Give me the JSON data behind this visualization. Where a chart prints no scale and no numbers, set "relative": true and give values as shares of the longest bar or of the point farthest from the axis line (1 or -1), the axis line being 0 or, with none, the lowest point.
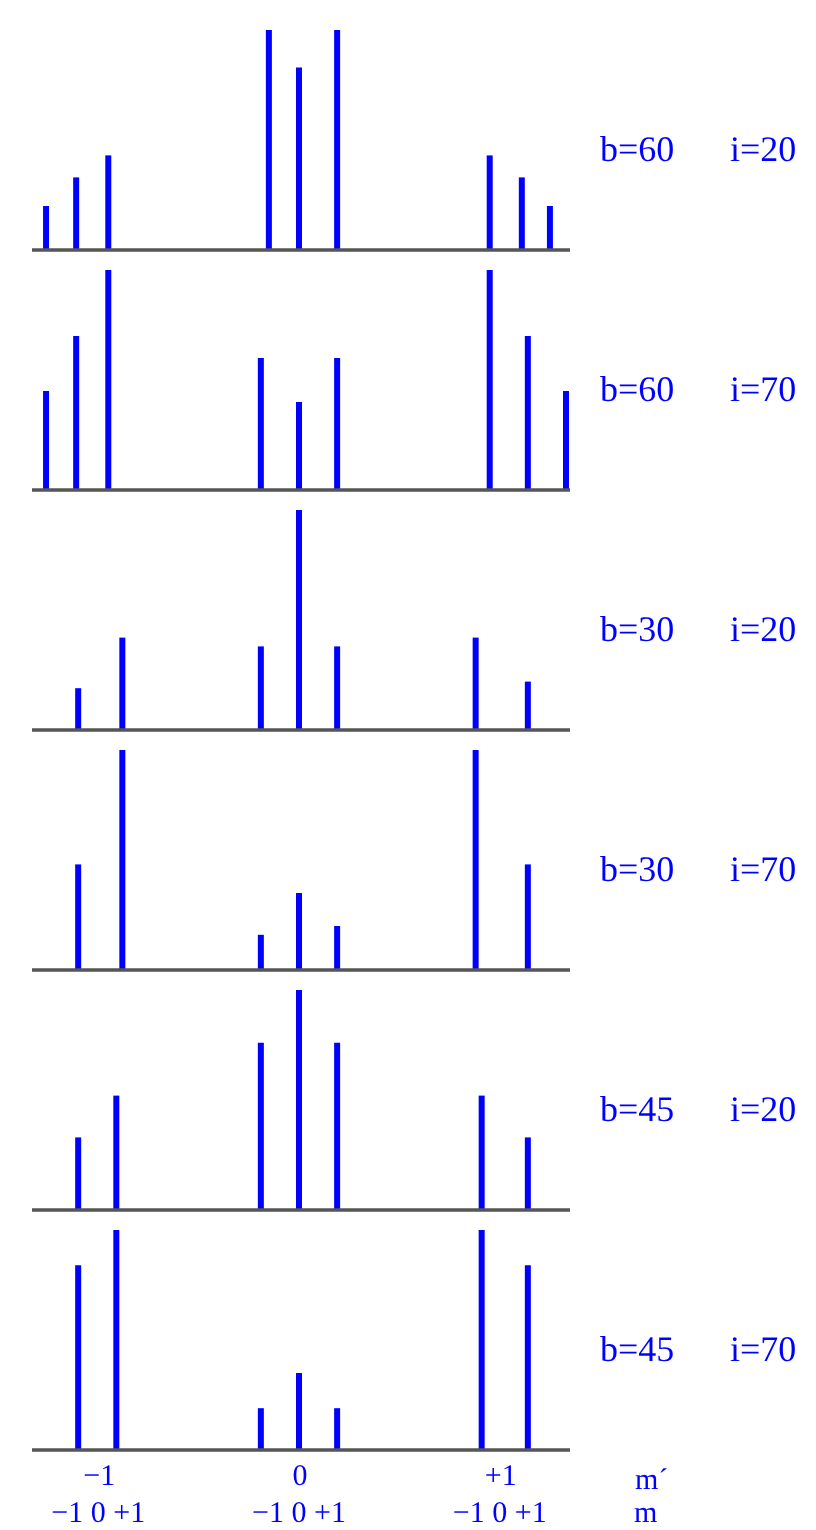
{
  "chart_data": [
    {
      "type": "bar",
      "x": [
        -1.26,
        -1.11,
        -0.95,
        -0.15,
        0,
        0.19,
        0.95,
        1.11,
        1.25
      ],
      "values": [
        0.2,
        0.33,
        0.43,
        1,
        0.83,
        1,
        0.43,
        0.33,
        0.2
      ],
      "color": "#0000ff",
      "relative": true,
      "xlim": [
        -1.33,
        1.35
      ],
      "tick_labels": false,
      "annotations": [
        "b=60",
        "i=20"
      ]
    },
    {
      "type": "bar",
      "x": [
        -1.26,
        -1.11,
        -0.95,
        -0.19,
        0,
        0.19,
        0.95,
        1.14,
        1.33
      ],
      "values": [
        0.45,
        0.7,
        1,
        0.6,
        0.4,
        0.6,
        1,
        0.7,
        0.45
      ],
      "color": "#0000ff",
      "relative": true,
      "xlim": [
        -1.33,
        1.35
      ],
      "tick_labels": false,
      "annotations": [
        "b=60",
        "i=70"
      ]
    },
    {
      "type": "bar",
      "x": [
        -1.1,
        -0.88,
        -0.19,
        0,
        0.19,
        0.88,
        1.14
      ],
      "values": [
        0.19,
        0.42,
        0.38,
        1,
        0.38,
        0.42,
        0.22
      ],
      "color": "#0000ff",
      "relative": true,
      "xlim": [
        -1.33,
        1.35
      ],
      "tick_labels": false,
      "annotations": [
        "b=30",
        "i=20"
      ]
    },
    {
      "type": "bar",
      "x": [
        -1.1,
        -0.88,
        -0.19,
        0,
        0.19,
        0.88,
        1.14
      ],
      "values": [
        0.48,
        1,
        0.16,
        0.35,
        0.2,
        1,
        0.48
      ],
      "color": "#0000ff",
      "relative": true,
      "xlim": [
        -1.33,
        1.35
      ],
      "tick_labels": false,
      "annotations": [
        "b=30",
        "i=70"
      ]
    },
    {
      "type": "bar",
      "x": [
        -1.1,
        -0.91,
        -0.19,
        0,
        0.19,
        0.91,
        1.14
      ],
      "values": [
        0.33,
        0.52,
        0.76,
        1,
        0.76,
        0.52,
        0.33
      ],
      "color": "#0000ff",
      "relative": true,
      "xlim": [
        -1.33,
        1.35
      ],
      "tick_labels": false,
      "annotations": [
        "b=45",
        "i=20"
      ]
    },
    {
      "type": "bar",
      "x": [
        -1.1,
        -0.91,
        -0.19,
        0,
        0.19,
        0.91,
        1.14
      ],
      "values": [
        0.84,
        1,
        0.19,
        0.35,
        0.19,
        1,
        0.84
      ],
      "color": "#0000ff",
      "relative": true,
      "xlim": [
        -1.33,
        1.35
      ],
      "xticks": [
        {
          "value": -1,
          "label": "−1"
        },
        0,
        {
          "value": 1,
          "label": "+1"
        }
      ],
      "xlabel": "m´",
      "annotations": [
        "b=45",
        "i=70",
        "−1 0 +1",
        "−1 0 +1",
        "−1 0 +1",
        "m"
      ]
    }
  ]
}
